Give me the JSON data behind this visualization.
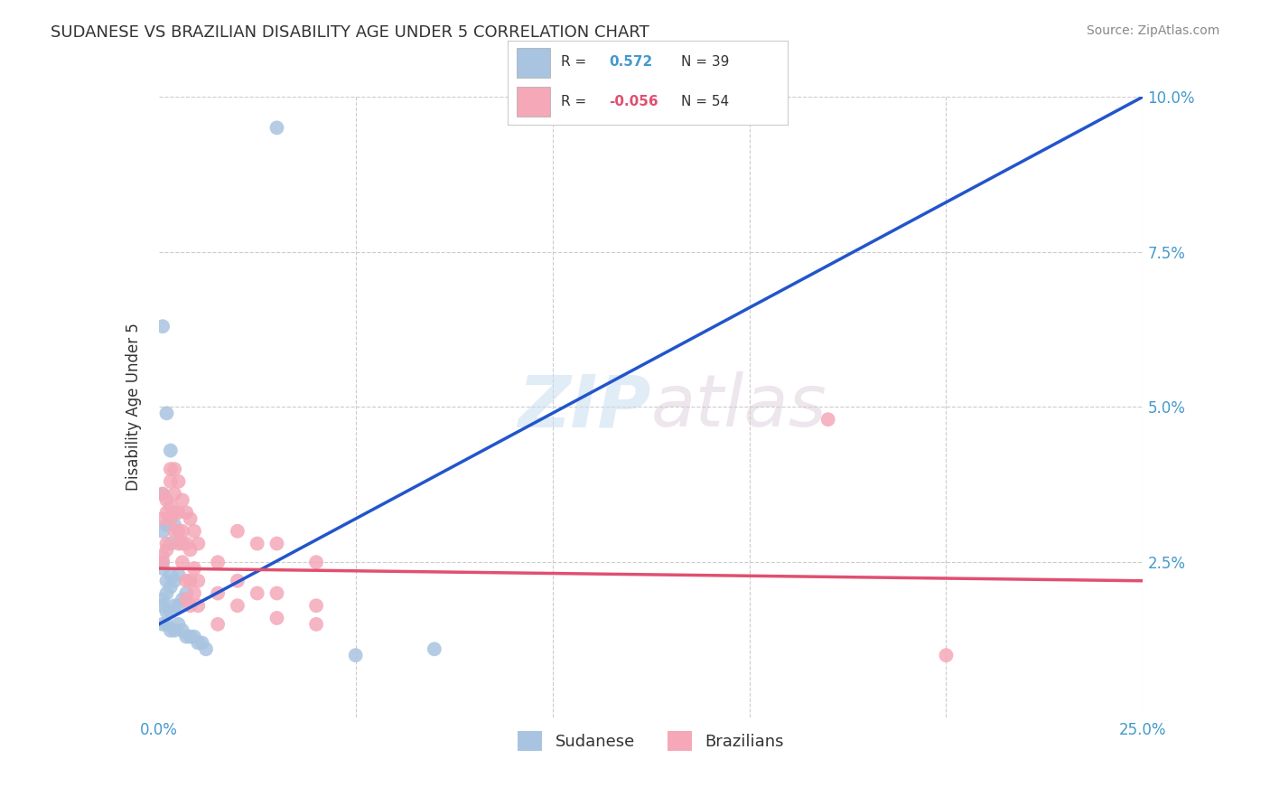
{
  "title": "SUDANESE VS BRAZILIAN DISABILITY AGE UNDER 5 CORRELATION CHART",
  "source": "Source: ZipAtlas.com",
  "ylabel": "Disability Age Under 5",
  "xlim": [
    0.0,
    0.25
  ],
  "ylim": [
    0.0,
    0.1
  ],
  "sudanese_R": 0.572,
  "sudanese_N": 39,
  "brazilian_R": -0.056,
  "brazilian_N": 54,
  "sudanese_color": "#a8c4e0",
  "brazilians_color": "#f4a8b8",
  "sudanese_line_color": "#2255cc",
  "brazilians_line_color": "#e05070",
  "watermark_zip": "ZIP",
  "watermark_atlas": "atlas",
  "background_color": "#ffffff",
  "grid_color": "#cccccc",
  "sudanese_points": [
    [
      0.001,
      0.063
    ],
    [
      0.002,
      0.049
    ],
    [
      0.003,
      0.043
    ],
    [
      0.001,
      0.036
    ],
    [
      0.001,
      0.03
    ],
    [
      0.002,
      0.031
    ],
    [
      0.003,
      0.028
    ],
    [
      0.004,
      0.031
    ],
    [
      0.001,
      0.025
    ],
    [
      0.001,
      0.024
    ],
    [
      0.002,
      0.022
    ],
    [
      0.003,
      0.023
    ],
    [
      0.002,
      0.02
    ],
    [
      0.003,
      0.021
    ],
    [
      0.004,
      0.022
    ],
    [
      0.005,
      0.023
    ],
    [
      0.001,
      0.019
    ],
    [
      0.001,
      0.018
    ],
    [
      0.002,
      0.017
    ],
    [
      0.003,
      0.017
    ],
    [
      0.004,
      0.018
    ],
    [
      0.005,
      0.018
    ],
    [
      0.006,
      0.019
    ],
    [
      0.007,
      0.02
    ],
    [
      0.001,
      0.015
    ],
    [
      0.002,
      0.015
    ],
    [
      0.003,
      0.014
    ],
    [
      0.004,
      0.014
    ],
    [
      0.005,
      0.015
    ],
    [
      0.006,
      0.014
    ],
    [
      0.007,
      0.013
    ],
    [
      0.008,
      0.013
    ],
    [
      0.009,
      0.013
    ],
    [
      0.01,
      0.012
    ],
    [
      0.011,
      0.012
    ],
    [
      0.012,
      0.011
    ],
    [
      0.03,
      0.095
    ],
    [
      0.05,
      0.01
    ],
    [
      0.07,
      0.011
    ]
  ],
  "brazilians_points": [
    [
      0.001,
      0.026
    ],
    [
      0.001,
      0.025
    ],
    [
      0.002,
      0.028
    ],
    [
      0.002,
      0.027
    ],
    [
      0.001,
      0.036
    ],
    [
      0.002,
      0.035
    ],
    [
      0.002,
      0.033
    ],
    [
      0.001,
      0.032
    ],
    [
      0.003,
      0.04
    ],
    [
      0.003,
      0.038
    ],
    [
      0.003,
      0.034
    ],
    [
      0.003,
      0.032
    ],
    [
      0.004,
      0.04
    ],
    [
      0.004,
      0.036
    ],
    [
      0.004,
      0.033
    ],
    [
      0.004,
      0.03
    ],
    [
      0.005,
      0.038
    ],
    [
      0.005,
      0.033
    ],
    [
      0.005,
      0.03
    ],
    [
      0.005,
      0.028
    ],
    [
      0.006,
      0.035
    ],
    [
      0.006,
      0.03
    ],
    [
      0.006,
      0.028
    ],
    [
      0.006,
      0.025
    ],
    [
      0.007,
      0.033
    ],
    [
      0.007,
      0.028
    ],
    [
      0.007,
      0.022
    ],
    [
      0.007,
      0.019
    ],
    [
      0.008,
      0.032
    ],
    [
      0.008,
      0.027
    ],
    [
      0.008,
      0.022
    ],
    [
      0.008,
      0.018
    ],
    [
      0.009,
      0.03
    ],
    [
      0.009,
      0.024
    ],
    [
      0.009,
      0.02
    ],
    [
      0.01,
      0.028
    ],
    [
      0.01,
      0.022
    ],
    [
      0.01,
      0.018
    ],
    [
      0.015,
      0.025
    ],
    [
      0.015,
      0.02
    ],
    [
      0.015,
      0.015
    ],
    [
      0.02,
      0.03
    ],
    [
      0.02,
      0.022
    ],
    [
      0.02,
      0.018
    ],
    [
      0.025,
      0.028
    ],
    [
      0.025,
      0.02
    ],
    [
      0.03,
      0.028
    ],
    [
      0.03,
      0.02
    ],
    [
      0.03,
      0.016
    ],
    [
      0.04,
      0.025
    ],
    [
      0.04,
      0.018
    ],
    [
      0.04,
      0.015
    ],
    [
      0.2,
      0.01
    ],
    [
      0.17,
      0.048
    ]
  ],
  "sudanese_line_x": [
    0.0,
    0.25
  ],
  "sudanese_line_y": [
    0.015,
    0.1
  ],
  "brazilians_line_x": [
    0.0,
    0.25
  ],
  "brazilians_line_y": [
    0.024,
    0.022
  ],
  "xtick_positions": [
    0.0,
    0.05,
    0.1,
    0.15,
    0.2,
    0.25
  ],
  "xtick_labels": [
    "0.0%",
    "",
    "",
    "",
    "",
    "25.0%"
  ],
  "ytick_positions": [
    0.0,
    0.025,
    0.05,
    0.075,
    0.1
  ],
  "ytick_labels_right": [
    "",
    "2.5%",
    "5.0%",
    "7.5%",
    "10.0%"
  ],
  "hgrid_values": [
    0.025,
    0.05,
    0.075,
    0.1
  ],
  "vgrid_values": [
    0.05,
    0.1,
    0.15,
    0.2,
    0.25
  ],
  "tick_color": "#4499cc",
  "title_color": "#333333",
  "source_color": "#888888",
  "ylabel_color": "#333333"
}
